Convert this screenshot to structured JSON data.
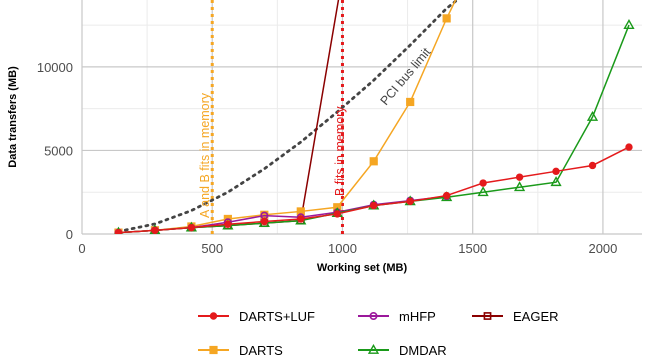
{
  "chart_data": {
    "type": "line",
    "title": "",
    "xlabel": "Working set (MB)",
    "ylabel": "Data transfers (MB)",
    "xlim": [
      0,
      2150
    ],
    "ylim": [
      0,
      14000
    ],
    "xticks": [
      0,
      500,
      1000,
      1500,
      2000
    ],
    "yticks": [
      0,
      5000,
      10000
    ],
    "grid": true,
    "legend_position": "bottom",
    "series": [
      {
        "name": "DARTS+LUF",
        "color": "#e41a1c",
        "marker": "circle",
        "x": [
          140,
          280,
          420,
          560,
          700,
          840,
          980,
          1120,
          1260,
          1400,
          1540,
          1680,
          1820,
          1960,
          2100
        ],
        "y": [
          80,
          220,
          380,
          580,
          750,
          900,
          1200,
          1700,
          1950,
          2300,
          3050,
          3400,
          3750,
          4100,
          5200
        ]
      },
      {
        "name": "mHFP",
        "color": "#9b189b",
        "marker": "circle-open",
        "x": [
          140,
          280,
          420,
          560,
          700,
          840,
          980,
          1120,
          1260,
          1400
        ],
        "y": [
          80,
          220,
          380,
          700,
          1100,
          1000,
          1300,
          1750,
          2000,
          2250
        ]
      },
      {
        "name": "EAGER",
        "color": "#8b0000",
        "marker": "square-open",
        "x": [
          140,
          280,
          420,
          560,
          700,
          840,
          990
        ],
        "y": [
          80,
          220,
          380,
          500,
          650,
          800,
          14500
        ]
      },
      {
        "name": "DARTS",
        "color": "#f5a623",
        "marker": "square",
        "x": [
          140,
          280,
          420,
          560,
          700,
          840,
          980,
          1120,
          1260,
          1400,
          1450
        ],
        "y": [
          80,
          220,
          450,
          900,
          1150,
          1350,
          1600,
          4350,
          7900,
          12900,
          14500
        ]
      },
      {
        "name": "DMDAR",
        "color": "#1a9a1a",
        "marker": "triangle-open",
        "x": [
          140,
          280,
          420,
          560,
          700,
          840,
          980,
          1120,
          1260,
          1400,
          1540,
          1680,
          1820,
          1960,
          2100
        ],
        "y": [
          80,
          220,
          380,
          500,
          650,
          800,
          1250,
          1700,
          1950,
          2200,
          2500,
          2800,
          3100,
          7000,
          12500
        ]
      }
    ],
    "reference_lines": [
      {
        "type": "vertical",
        "x": 500,
        "color": "#f5a623",
        "label": "A and B fits in memory"
      },
      {
        "type": "vertical",
        "x": 1000,
        "color": "#e41a1c",
        "label": "B fits in memory"
      },
      {
        "type": "curve",
        "color": "#444444",
        "label": "PCI bus limit",
        "x": [
          140,
          280,
          420,
          560,
          700,
          840,
          980,
          1120,
          1260,
          1400,
          1480
        ],
        "y": [
          150,
          600,
          1400,
          2500,
          3900,
          5500,
          7300,
          9200,
          11300,
          13500,
          14500
        ]
      }
    ]
  }
}
